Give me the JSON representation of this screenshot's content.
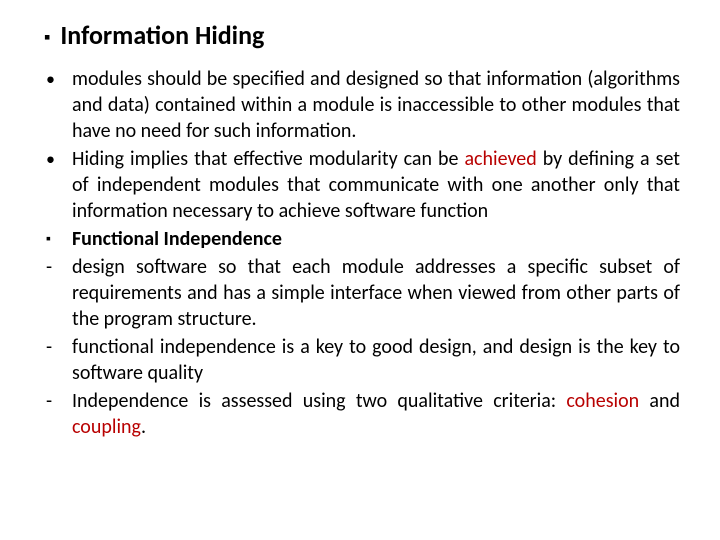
{
  "colors": {
    "heading": "#000000",
    "body_text": "#000000",
    "highlight": "#b80000",
    "background": "#ffffff"
  },
  "typography": {
    "heading_fontsize_pt": 20,
    "body_fontsize_pt": 15,
    "font_family": "Calibri",
    "heading_weight": "700",
    "body_weight": "400"
  },
  "heading": {
    "bullet_glyph": "▪",
    "text": "Information Hiding"
  },
  "items": [
    {
      "marker_type": "disc",
      "marker": "•",
      "bold": false,
      "segments": [
        {
          "text": "modules should be specified and designed so that information (algorithms and data) contained within a module is inaccessible to other modules that have no need for such information.",
          "highlight": false
        }
      ]
    },
    {
      "marker_type": "disc",
      "marker": "•",
      "bold": false,
      "segments": [
        {
          "text": "Hiding implies that effective modularity can be ",
          "highlight": false
        },
        {
          "text": "achieved",
          "highlight": true
        },
        {
          "text": " by defining a set of independent modules that communicate with one another only that information necessary to achieve software function",
          "highlight": false
        }
      ]
    },
    {
      "marker_type": "square",
      "marker": "▪",
      "bold": true,
      "segments": [
        {
          "text": "Functional Independence",
          "highlight": false
        }
      ]
    },
    {
      "marker_type": "dash",
      "marker": "-",
      "bold": false,
      "segments": [
        {
          "text": "design software so that each module addresses a specific subset of requirements and has a simple interface when viewed from other parts of the program structure.",
          "highlight": false
        }
      ]
    },
    {
      "marker_type": "dash",
      "marker": "-",
      "bold": false,
      "segments": [
        {
          "text": "functional independence is a key to good design, and design is the key to software quality",
          "highlight": false
        }
      ]
    },
    {
      "marker_type": "dash",
      "marker": "-",
      "bold": false,
      "segments": [
        {
          "text": "Independence is assessed using two qualitative criteria: ",
          "highlight": false
        },
        {
          "text": "cohesion",
          "highlight": true
        },
        {
          "text": " and ",
          "highlight": false
        },
        {
          "text": "coupling",
          "highlight": true
        },
        {
          "text": ".",
          "highlight": false
        }
      ]
    }
  ]
}
